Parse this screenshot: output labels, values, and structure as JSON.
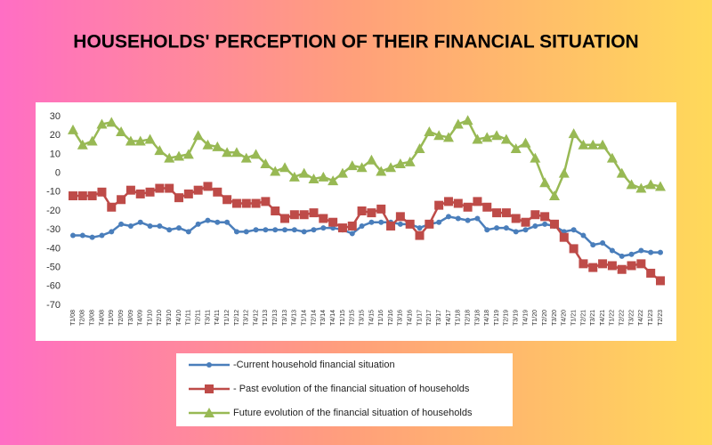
{
  "chart_data": {
    "type": "line",
    "title": "HOUSEHOLDS' PERCEPTION OF THEIR FINANCIAL SITUATION",
    "categories": [
      "T1/08",
      "T2/08",
      "T3/08",
      "T4/08",
      "T1/09",
      "T2/09",
      "T3/09",
      "T4/09",
      "T1/10",
      "T2/10",
      "T3/10",
      "T4/10",
      "T1/11",
      "T2/11",
      "T3/11",
      "T4/11",
      "T1/12",
      "T2/12",
      "T3/12",
      "T4/12",
      "T1/13",
      "T2/13",
      "T3/13",
      "T4/13",
      "T1/14",
      "T2/14",
      "T3/14",
      "T4/14",
      "T1/15",
      "T2/15",
      "T3/15",
      "T4/15",
      "T1/16",
      "T2/16",
      "T3/16",
      "T4/16",
      "T1/17",
      "T2/17",
      "T3/17",
      "T4/17",
      "T1/18",
      "T2/18",
      "T3/18",
      "T4/18",
      "T1/19",
      "T2/19",
      "T3/19",
      "T4/19",
      "T1/20",
      "T2/20",
      "T3/20",
      "T4/20",
      "T1/21",
      "T2/21",
      "T3/21",
      "T4/21",
      "T1/22",
      "T2/22",
      "T3/22",
      "T4/22",
      "T1/23",
      "T2/23"
    ],
    "series": [
      {
        "name": "-Current household financial situation",
        "color": "#4a7ebb",
        "marker": "circle",
        "values": [
          -33,
          -33,
          -34,
          -33,
          -31,
          -27,
          -28,
          -26,
          -28,
          -28,
          -30,
          -29,
          -31,
          -27,
          -25,
          -26,
          -26,
          -31,
          -31,
          -30,
          -30,
          -30,
          -30,
          -30,
          -31,
          -30,
          -29,
          -29,
          -30,
          -32,
          -28,
          -26,
          -26,
          -26,
          -27,
          -27,
          -29,
          -27,
          -26,
          -23,
          -24,
          -25,
          -24,
          -30,
          -29,
          -29,
          -31,
          -30,
          -28,
          -27,
          -28,
          -31,
          -30,
          -33,
          -38,
          -37,
          -41,
          -44,
          -43,
          -41,
          -42,
          -42
        ]
      },
      {
        "name": "- Past evolution of the financial situation of households",
        "color": "#be4b48",
        "marker": "square",
        "values": [
          -12,
          -12,
          -12,
          -10,
          -18,
          -14,
          -9,
          -11,
          -10,
          -8,
          -8,
          -13,
          -11,
          -9,
          -7,
          -10,
          -14,
          -16,
          -16,
          -16,
          -15,
          -20,
          -24,
          -22,
          -22,
          -21,
          -24,
          -26,
          -29,
          -28,
          -20,
          -21,
          -19,
          -28,
          -23,
          -27,
          -33,
          -27,
          -17,
          -15,
          -16,
          -18,
          -15,
          -18,
          -21,
          -21,
          -24,
          -26,
          -22,
          -23,
          -27,
          -34,
          -40,
          -48,
          -50,
          -48,
          -49,
          -51,
          -49,
          -48,
          -53,
          -57
        ]
      },
      {
        "name": "Future evolution of the financial situation of households",
        "color": "#98b954",
        "marker": "triangle",
        "values": [
          23,
          15,
          17,
          26,
          27,
          22,
          17,
          17,
          18,
          12,
          8,
          9,
          10,
          20,
          15,
          14,
          11,
          11,
          8,
          10,
          5,
          1,
          3,
          -2,
          0,
          -3,
          -2,
          -4,
          0,
          4,
          3,
          7,
          1,
          3,
          5,
          6,
          13,
          22,
          20,
          19,
          26,
          28,
          18,
          19,
          20,
          18,
          13,
          16,
          8,
          -5,
          -12,
          0,
          21,
          15,
          15,
          15,
          8,
          0,
          -6,
          -8,
          -6,
          -7
        ]
      }
    ],
    "ylim": [
      -70,
      30
    ],
    "yticks": [
      30,
      20,
      10,
      0,
      -10,
      -20,
      -30,
      -40,
      -50,
      -60,
      -70
    ],
    "grid": false
  }
}
